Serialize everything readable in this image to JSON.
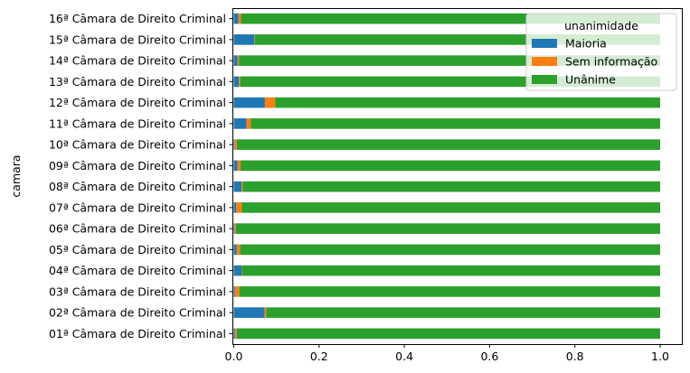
{
  "chart_data": {
    "type": "bar",
    "orientation": "horizontal",
    "stacked": true,
    "ylabel": "camara",
    "xlabel": "",
    "xlim": [
      0,
      1.0
    ],
    "xticks": [
      "0.0",
      "0.2",
      "0.4",
      "0.6",
      "0.8",
      "1.0"
    ],
    "xtick_values": [
      0,
      0.2,
      0.4,
      0.6,
      0.8,
      1.0
    ],
    "grid": false,
    "legend": {
      "title": "unanimidade",
      "placement": "top-right"
    },
    "categories": [
      "01ª Câmara de Direito Criminal",
      "02ª Câmara de Direito Criminal",
      "03ª Câmara de Direito Criminal",
      "04ª Câmara de Direito Criminal",
      "05ª Câmara de Direito Criminal",
      "06ª Câmara de Direito Criminal",
      "07ª Câmara de Direito Criminal",
      "08ª Câmara de Direito Criminal",
      "09ª Câmara de Direito Criminal",
      "10ª Câmara de Direito Criminal",
      "11ª Câmara de Direito Criminal",
      "12ª Câmara de Direito Criminal",
      "13ª Câmara de Direito Criminal",
      "14ª Câmara de Direito Criminal",
      "15ª Câmara de Direito Criminal",
      "16ª Câmara de Direito Criminal"
    ],
    "series": [
      {
        "name": "Maioria",
        "color": "#1f77b4",
        "values": [
          0.003,
          0.072,
          0.003,
          0.018,
          0.007,
          0.002,
          0.006,
          0.018,
          0.009,
          0.002,
          0.03,
          0.073,
          0.012,
          0.009,
          0.048,
          0.011
        ]
      },
      {
        "name": "Sem informação",
        "color": "#ff7f0e",
        "values": [
          0.004,
          0.004,
          0.01,
          0.001,
          0.008,
          0.003,
          0.013,
          0.003,
          0.007,
          0.005,
          0.01,
          0.024,
          0.003,
          0.003,
          0.001,
          0.006
        ]
      },
      {
        "name": "Unânime",
        "color": "#2ca02c",
        "values": [
          0.993,
          0.924,
          0.987,
          0.981,
          0.985,
          0.995,
          0.981,
          0.979,
          0.984,
          0.993,
          0.96,
          0.903,
          0.985,
          0.988,
          0.951,
          0.983
        ]
      }
    ]
  }
}
